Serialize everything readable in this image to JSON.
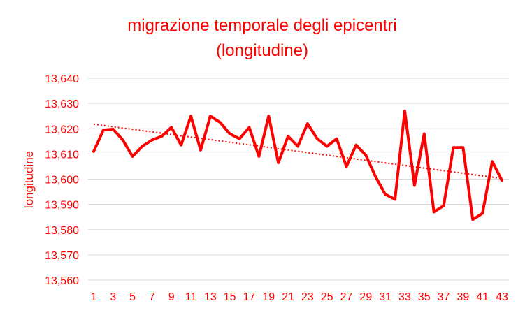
{
  "chart_data": {
    "type": "line",
    "title": "migrazione temporale degli epicentri",
    "subtitle": "(longitudine)",
    "xlabel": "",
    "ylabel": "longitudine",
    "x": [
      1,
      2,
      3,
      4,
      5,
      6,
      7,
      8,
      9,
      10,
      11,
      12,
      13,
      14,
      15,
      16,
      17,
      18,
      19,
      20,
      21,
      22,
      23,
      24,
      25,
      26,
      27,
      28,
      29,
      30,
      31,
      32,
      33,
      34,
      35,
      36,
      37,
      38,
      39,
      40,
      41,
      42,
      43
    ],
    "x_tick_labels": [
      "1",
      "3",
      "5",
      "7",
      "9",
      "11",
      "13",
      "15",
      "17",
      "19",
      "21",
      "23",
      "25",
      "27",
      "29",
      "31",
      "33",
      "35",
      "37",
      "39",
      "41",
      "43"
    ],
    "y_tick_labels": [
      "13,640",
      "13,630",
      "13,620",
      "13,610",
      "13,600",
      "13,590",
      "13,580",
      "13,570",
      "13,560"
    ],
    "ylim": [
      13.56,
      13.64
    ],
    "y_ticks": [
      13.64,
      13.63,
      13.62,
      13.61,
      13.6,
      13.59,
      13.58,
      13.57,
      13.56
    ],
    "grid": true,
    "series": [
      {
        "values": [
          13.611,
          13.6195,
          13.6198,
          13.6155,
          13.609,
          13.613,
          13.6155,
          13.617,
          13.6205,
          13.6135,
          13.625,
          13.6115,
          13.625,
          13.6225,
          13.618,
          13.616,
          13.6205,
          13.609,
          13.625,
          13.6065,
          13.617,
          13.613,
          13.622,
          13.616,
          13.613,
          13.616,
          13.605,
          13.6135,
          13.6095,
          13.601,
          13.594,
          13.592,
          13.627,
          13.5975,
          13.618,
          13.587,
          13.5895,
          13.6125,
          13.6125,
          13.584,
          13.5865,
          13.607,
          13.5995
        ]
      }
    ],
    "trendline": {
      "type": "linear",
      "style": "dotted",
      "start": [
        1,
        13.6218
      ],
      "end": [
        43,
        13.6003
      ]
    },
    "colors": {
      "series": "#ff0000",
      "text": "#ff0000",
      "grid": "#d9d9d9"
    }
  }
}
